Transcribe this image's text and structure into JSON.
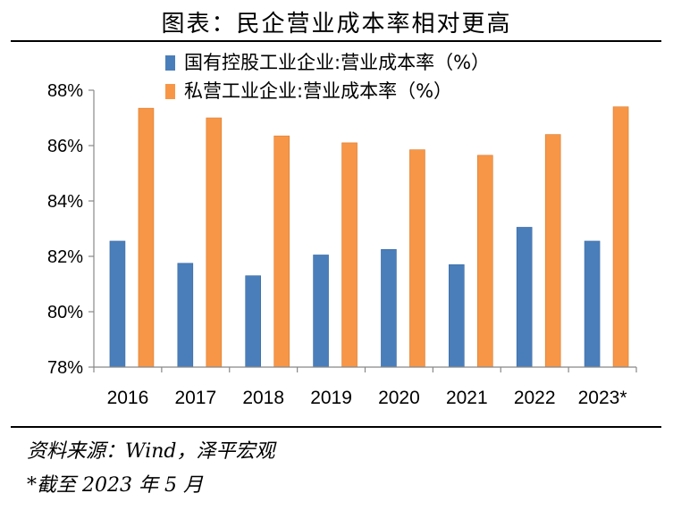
{
  "title": "图表：民企营业成本率相对更高",
  "chart_data": {
    "type": "bar",
    "categories": [
      "2016",
      "2017",
      "2018",
      "2019",
      "2020",
      "2021",
      "2022",
      "2023*"
    ],
    "series": [
      {
        "name": "国有控股工业企业:营业成本率（%）",
        "color": "#4A7EBB",
        "values": [
          82.55,
          81.75,
          81.3,
          82.05,
          82.25,
          81.7,
          83.05,
          82.55
        ]
      },
      {
        "name": "私营工业企业:营业成本率（%）",
        "color": "#F79646",
        "values": [
          87.35,
          87.0,
          86.35,
          86.1,
          85.85,
          85.65,
          86.4,
          87.4
        ]
      }
    ],
    "ylim": [
      78,
      88
    ],
    "yticks": [
      "78%",
      "80%",
      "82%",
      "84%",
      "86%",
      "88%"
    ],
    "ytick_values": [
      78,
      80,
      82,
      84,
      86,
      88
    ],
    "legend_position": "top",
    "grid": false
  },
  "notes": {
    "source": "资料来源：Wind，泽平宏观",
    "footnote": "*截至 2023 年 5 月"
  }
}
